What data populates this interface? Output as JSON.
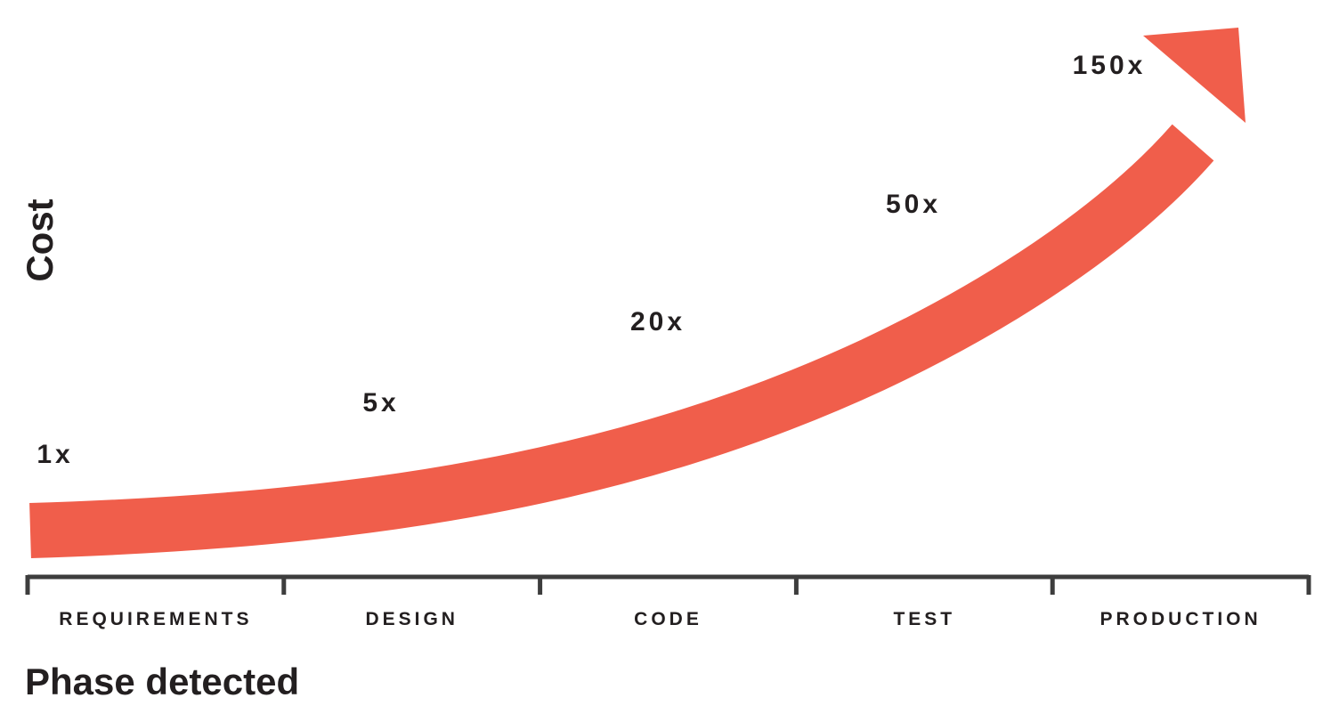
{
  "chart_data": {
    "type": "line",
    "title": "",
    "xlabel": "Phase detected",
    "ylabel": "Cost",
    "categories": [
      "REQUIREMENTS",
      "DESIGN",
      "CODE",
      "TEST",
      "PRODUCTION"
    ],
    "values": [
      1,
      5,
      20,
      50,
      150
    ],
    "data_labels": [
      "1x",
      "5x",
      "20x",
      "50x",
      "150x"
    ],
    "grid": false,
    "legend": "none",
    "colors": {
      "arrow": "#f05e4b",
      "axis": "#3d3d3d",
      "text": "#231f20"
    }
  }
}
